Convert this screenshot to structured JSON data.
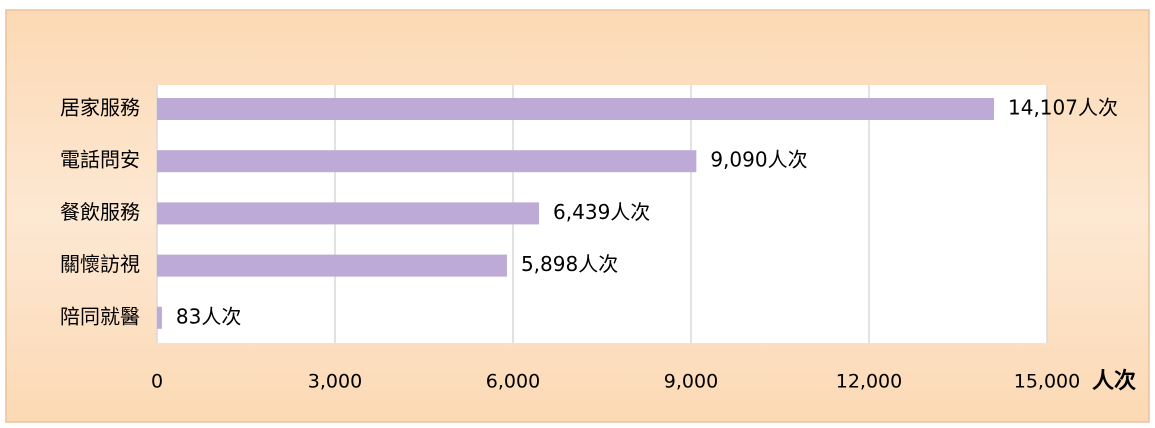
{
  "chart_data": {
    "type": "bar",
    "orientation": "horizontal",
    "categories": [
      "居家服務",
      "電話問安",
      "餐飲服務",
      "關懷訪視",
      "陪同就醫"
    ],
    "values": [
      14107,
      9090,
      6439,
      5898,
      83
    ],
    "value_labels": [
      "14,107人次",
      "9,090人次",
      "6,439人次",
      "5,898人次",
      "83人次"
    ],
    "color": "#bdaad6",
    "x_label": "人次",
    "xlim": [
      0,
      15000
    ],
    "xticks": [
      0,
      {
        "value": 3000,
        "label": "3,000"
      },
      {
        "value": 6000,
        "label": "6,000"
      },
      {
        "value": 9000,
        "label": "9,000"
      },
      {
        "value": 12000,
        "label": "12,000"
      },
      {
        "value": 15000,
        "label": "15,000"
      }
    ],
    "grid": true
  }
}
